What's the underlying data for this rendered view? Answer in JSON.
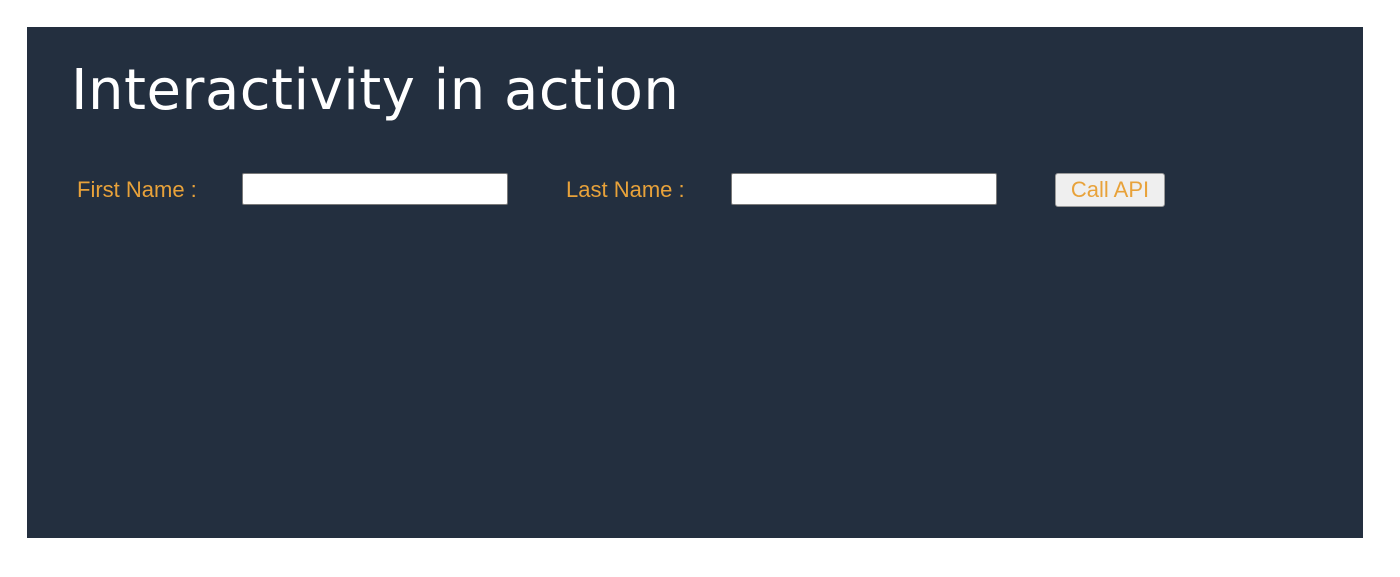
{
  "page": {
    "title": "Interactivity in action"
  },
  "form": {
    "first_name_label": "First Name :",
    "first_name_value": "",
    "last_name_label": "Last Name :",
    "last_name_value": "",
    "submit_label": "Call API"
  },
  "colors": {
    "panel_background": "#232f3f",
    "title_text": "#ffffff",
    "accent_text": "#e8a23a",
    "page_background": "#ffffff"
  }
}
